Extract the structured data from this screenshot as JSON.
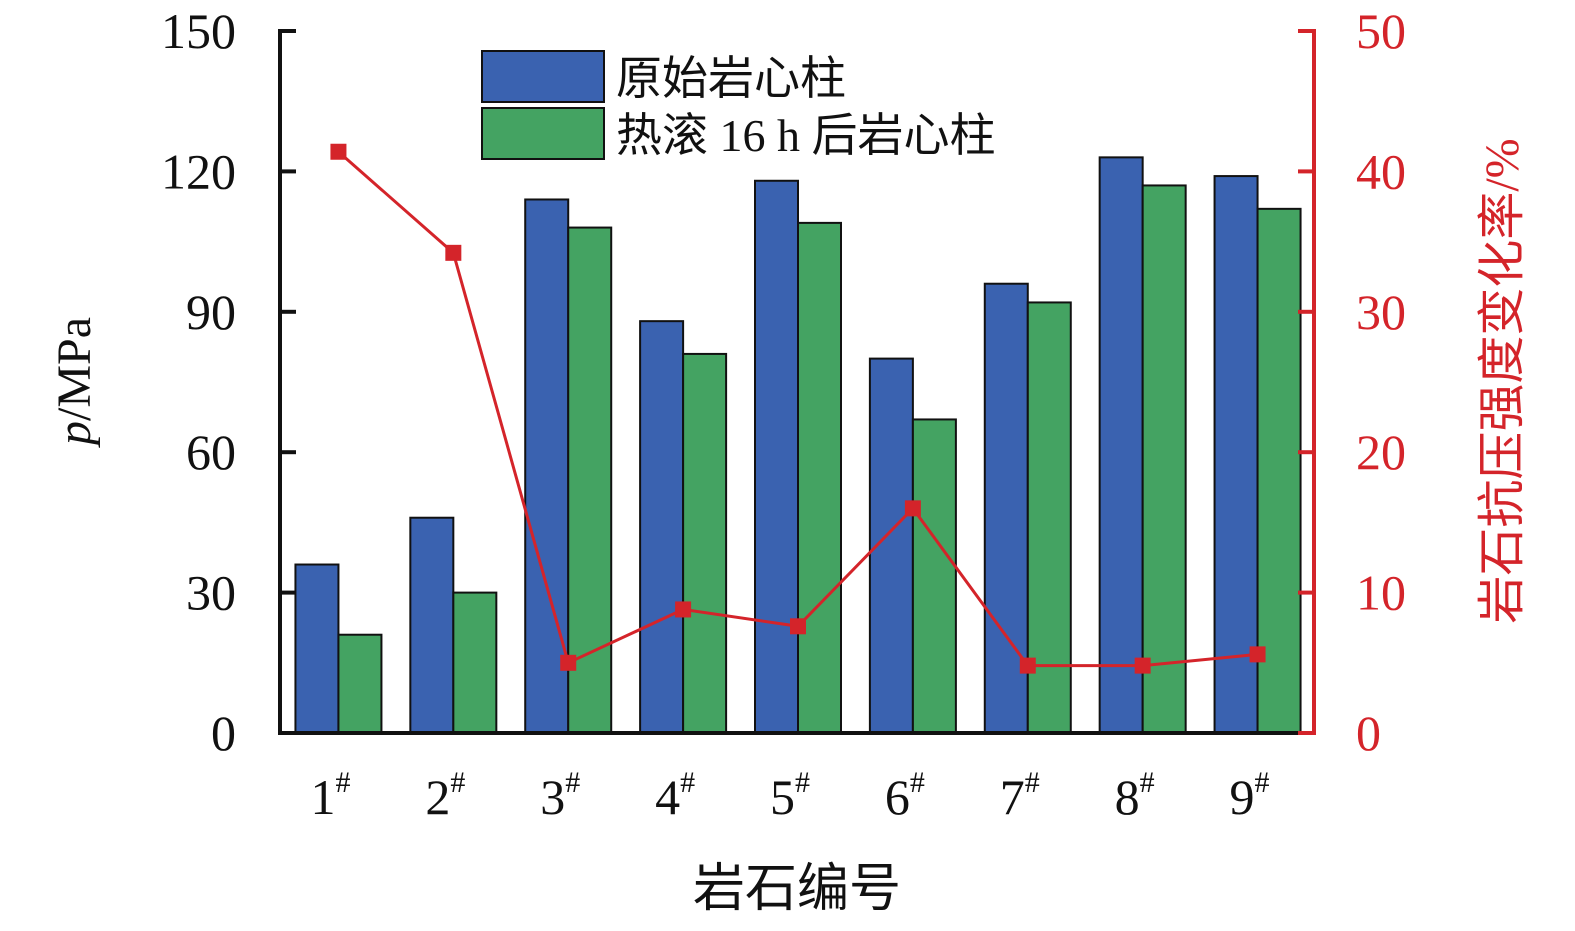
{
  "chart_data": {
    "type": "bar",
    "categories": [
      "1",
      "2",
      "3",
      "4",
      "5",
      "6",
      "7",
      "8",
      "9"
    ],
    "category_superscript": "#",
    "xlabel": "岩石编号",
    "ylabel_italic": "p",
    "ylabel_unit": "/MPa",
    "ylim": [
      0,
      150
    ],
    "yticks": [
      0,
      30,
      60,
      90,
      120,
      150
    ],
    "y2label": "岩石抗压强度变化率/%",
    "y2lim": [
      0,
      50
    ],
    "y2ticks": [
      0,
      10,
      20,
      30,
      40,
      50
    ],
    "legend_position": "top-center",
    "grid": false,
    "series": [
      {
        "name": "原始岩心柱",
        "kind": "bar",
        "axis": "left",
        "color": "#3a62b0",
        "values": [
          36,
          46,
          114,
          88,
          118,
          80,
          96,
          123,
          119
        ]
      },
      {
        "name": "热滚 16 h 后岩心柱",
        "kind": "bar",
        "axis": "left",
        "color": "#44a362",
        "values": [
          21,
          30,
          108,
          81,
          109,
          67,
          92,
          117,
          112
        ]
      },
      {
        "kind": "line",
        "axis": "right",
        "color": "#d4242a",
        "marker": "square",
        "values": [
          41.4,
          34.2,
          5.0,
          8.8,
          7.6,
          16.0,
          4.8,
          4.8,
          5.6
        ]
      }
    ]
  }
}
